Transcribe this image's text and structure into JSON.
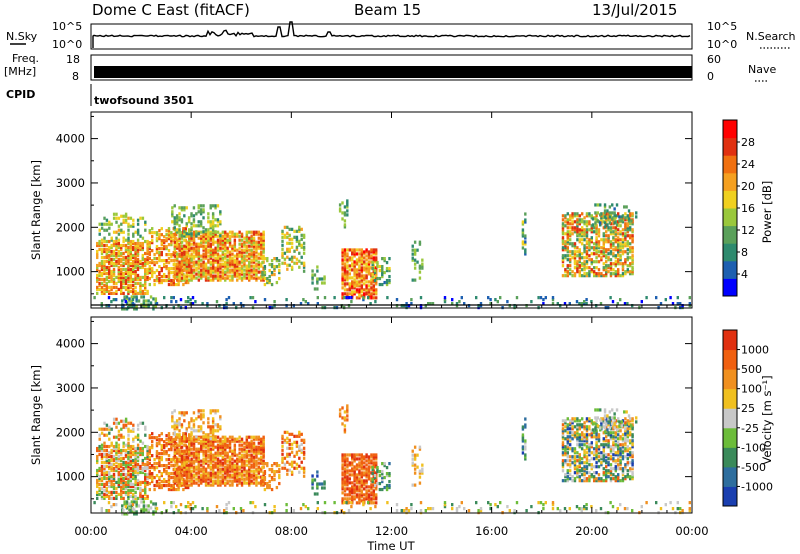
{
  "chart_data": {
    "type": "heatmap",
    "header": {
      "site": "Dome C East (fitACF)",
      "beam": "Beam 15",
      "date": "13/Jul/2015"
    },
    "top_panels": {
      "nsky_label": "N.Sky",
      "nsearch_label": "N.Search",
      "nsky_ticks": [
        "10^5",
        "10^0"
      ],
      "freq_label_1": "Freq.",
      "freq_label_2": "[MHz]",
      "freq_ticks": [
        "18",
        "8"
      ],
      "nave_label": "Nave",
      "nave_ticks": [
        "60",
        "0"
      ],
      "cpid_label": "CPID",
      "cpid_value": "twofsound 3501"
    },
    "x_axis": {
      "label": "Time UT",
      "ticks": [
        "00:00",
        "04:00",
        "08:00",
        "12:00",
        "16:00",
        "20:00",
        "00:00"
      ],
      "range_hours": [
        0,
        24
      ]
    },
    "y_axis": {
      "label": "Slant Range [km]",
      "ticks": [
        "1000",
        "2000",
        "3000",
        "4000"
      ],
      "range_km": [
        180,
        4600
      ]
    },
    "power_panel": {
      "colorbar_label": "Power [dB]",
      "colorbar_ticks": [
        "4",
        "8",
        "12",
        "16",
        "20",
        "24",
        "28"
      ],
      "range_db": [
        0,
        32
      ],
      "colors": [
        "#0000ff",
        "#1d5fb0",
        "#2e8a6e",
        "#5aa05a",
        "#9ac83c",
        "#f0d020",
        "#f5a020",
        "#f07010",
        "#e03010",
        "#ff0000"
      ]
    },
    "velocity_panel": {
      "colorbar_label": "Velocity [m s⁻¹]",
      "colorbar_ticks": [
        "1000",
        "500",
        "100",
        "25",
        "-25",
        "-100",
        "-500",
        "-1000"
      ],
      "colors": [
        "#1a3fb0",
        "#2e6e9e",
        "#3a8a5a",
        "#6cbc3a",
        "#c8c8c8",
        "#f0c020",
        "#f09020",
        "#f06010",
        "#e03010"
      ]
    },
    "scatter_patches": [
      {
        "t": [
          0.2,
          2.3
        ],
        "r": [
          500,
          1700
        ],
        "p": 0.7,
        "pw": [
          14,
          28
        ],
        "v": [
          2,
          8
        ]
      },
      {
        "t": [
          0.3,
          2.2
        ],
        "r": [
          1700,
          2300
        ],
        "p": 0.25,
        "pw": [
          8,
          20
        ],
        "v": [
          2,
          7
        ]
      },
      {
        "t": [
          2.3,
          4.0
        ],
        "r": [
          700,
          2000
        ],
        "p": 0.45,
        "pw": [
          14,
          28
        ],
        "v": [
          5,
          8
        ]
      },
      {
        "t": [
          3.3,
          6.9
        ],
        "r": [
          800,
          1900
        ],
        "p": 0.75,
        "pw": [
          14,
          28
        ],
        "v": [
          5,
          8
        ]
      },
      {
        "t": [
          3.2,
          5.2
        ],
        "r": [
          1800,
          2500
        ],
        "p": 0.3,
        "pw": [
          8,
          18
        ],
        "v": [
          4,
          7
        ]
      },
      {
        "t": [
          1.2,
          2.6
        ],
        "r": [
          150,
          450
        ],
        "p": 0.5,
        "pw": [
          4,
          16
        ],
        "v": [
          2,
          4
        ]
      },
      {
        "t": [
          6.8,
          7.6
        ],
        "r": [
          700,
          1300
        ],
        "p": 0.45,
        "pw": [
          8,
          20
        ],
        "v": [
          5,
          7
        ]
      },
      {
        "t": [
          7.6,
          8.6
        ],
        "r": [
          1000,
          2000
        ],
        "p": 0.35,
        "pw": [
          8,
          22
        ],
        "v": [
          4,
          8
        ]
      },
      {
        "t": [
          8.8,
          9.4
        ],
        "r": [
          600,
          1100
        ],
        "p": 0.3,
        "pw": [
          6,
          16
        ],
        "v": [
          0,
          3
        ]
      },
      {
        "t": [
          10.0,
          11.4
        ],
        "r": [
          400,
          1500
        ],
        "p": 0.7,
        "pw": [
          16,
          30
        ],
        "v": [
          6,
          8
        ]
      },
      {
        "t": [
          9.9,
          10.3
        ],
        "r": [
          2000,
          2600
        ],
        "p": 0.3,
        "pw": [
          6,
          16
        ],
        "v": [
          5,
          7
        ]
      },
      {
        "t": [
          11.2,
          12.0
        ],
        "r": [
          700,
          1300
        ],
        "p": 0.35,
        "pw": [
          6,
          18
        ],
        "v": [
          1,
          4
        ]
      },
      {
        "t": [
          12.8,
          13.3
        ],
        "r": [
          800,
          1700
        ],
        "p": 0.25,
        "pw": [
          6,
          14
        ],
        "v": [
          4,
          6
        ]
      },
      {
        "t": [
          17.2,
          17.4
        ],
        "r": [
          1300,
          2300
        ],
        "p": 0.5,
        "pw": [
          6,
          20
        ],
        "v": [
          0,
          4
        ]
      },
      {
        "t": [
          18.8,
          21.7
        ],
        "r": [
          900,
          2300
        ],
        "p": 0.55,
        "pw": [
          8,
          28
        ],
        "v": [
          0,
          7
        ]
      },
      {
        "t": [
          20.0,
          21.8
        ],
        "r": [
          2000,
          2500
        ],
        "p": 0.2,
        "pw": [
          6,
          14
        ],
        "v": [
          1,
          5
        ]
      },
      {
        "t": [
          0.0,
          24.0
        ],
        "r": [
          180,
          420
        ],
        "p": 0.12,
        "pw": [
          2,
          12
        ],
        "v": [
          2,
          6
        ]
      }
    ]
  }
}
